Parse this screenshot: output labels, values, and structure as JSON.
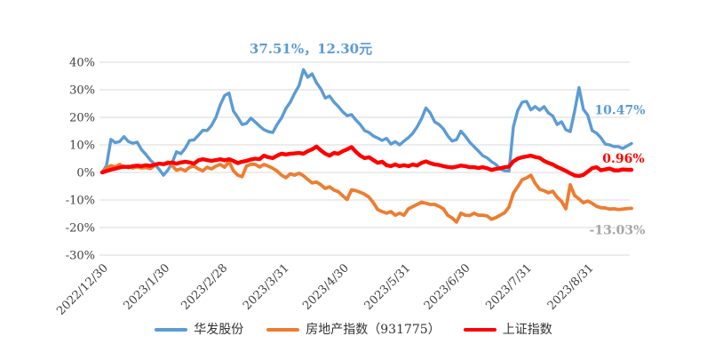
{
  "chart_data": {
    "type": "line",
    "title": "",
    "annotation": {
      "text": "37.51%，12.30元",
      "color": "#5B9BD5"
    },
    "grid": true,
    "legend_position": "bottom",
    "ylim": [
      -30,
      40
    ],
    "y_ticks": [
      {
        "value": 40,
        "label": "40%"
      },
      {
        "value": 30,
        "label": "30%"
      },
      {
        "value": 20,
        "label": "20%"
      },
      {
        "value": 10,
        "label": "10%"
      },
      {
        "value": 0,
        "label": "0%"
      },
      {
        "value": -10,
        "label": "-10%"
      },
      {
        "value": -20,
        "label": "-20%"
      },
      {
        "value": -30,
        "label": "-30%"
      }
    ],
    "x_tick_labels": [
      "2022/12/30",
      "2023/1/30",
      "2023/2/28",
      "2023/3/31",
      "2023/4/30",
      "2023/5/31",
      "2023/6/30",
      "2023/7/31",
      "2023/8/31"
    ],
    "x_tick_days": [
      0,
      31,
      60,
      91,
      121,
      152,
      182,
      213,
      244
    ],
    "total_days": 266,
    "colors": {
      "grid": "#D9D9D9",
      "axis_text": "#404040",
      "legend_text": "#333333"
    },
    "series": [
      {
        "name": "华发股份",
        "slug": "huafa-stock",
        "color": "#5B9BD5",
        "line_width": 3.4,
        "end_label": {
          "text": "10.47%",
          "color": "#5B9BD5"
        },
        "values": [
          0,
          2.5,
          12.0,
          10.8,
          11.2,
          13.0,
          11.2,
          10.6,
          11.0,
          8.3,
          6.5,
          4.5,
          3.0,
          1.2,
          -1.0,
          0.8,
          3.5,
          7.5,
          6.8,
          8.8,
          11.6,
          11.8,
          13.5,
          15.3,
          15.2,
          17.0,
          20.0,
          24.5,
          27.9,
          28.8,
          22.3,
          20.0,
          17.4,
          17.8,
          19.7,
          18.3,
          16.8,
          15.5,
          14.8,
          14.5,
          17.4,
          19.8,
          23.2,
          25.5,
          28.7,
          31.5,
          37.3,
          34.5,
          35.8,
          32.5,
          30.3,
          27.0,
          27.7,
          25.5,
          23.9,
          22.0,
          20.6,
          21.0,
          19.0,
          17.4,
          15.2,
          14.5,
          13.2,
          12.5,
          11.6,
          12.4,
          10.3,
          11.2,
          10.0,
          11.4,
          12.6,
          14.2,
          16.5,
          19.5,
          23.4,
          21.6,
          18.4,
          17.4,
          15.8,
          13.3,
          11.4,
          11.9,
          15.0,
          13.2,
          11.0,
          9.4,
          7.8,
          6.1,
          5.3,
          3.9,
          2.9,
          1.3,
          0.6,
          0.5,
          16.5,
          22.5,
          25.5,
          25.8,
          22.7,
          23.9,
          22.6,
          23.9,
          21.6,
          20.5,
          17.4,
          18.4,
          15.5,
          14.8,
          22.3,
          30.8,
          22.9,
          20.8,
          15.2,
          14.3,
          12.6,
          10.3,
          10.0,
          9.4,
          9.4,
          8.7,
          9.6,
          10.47
        ]
      },
      {
        "name": "房地产指数（931775）",
        "slug": "realestate-index",
        "color": "#ED7D31",
        "line_width": 3.8,
        "end_label": {
          "text": "-13.03%",
          "color": "#A6A6A6"
        },
        "values": [
          0,
          1.5,
          2.5,
          2.0,
          2.9,
          1.9,
          2.3,
          1.6,
          2.0,
          1.6,
          1.8,
          1.4,
          2.5,
          3.2,
          3.0,
          3.8,
          2.5,
          0.8,
          1.3,
          0.6,
          1.9,
          2.3,
          1.3,
          0.6,
          1.9,
          1.3,
          2.3,
          2.9,
          1.9,
          3.9,
          0.6,
          -1.0,
          -1.5,
          2.3,
          3.0,
          2.9,
          2.0,
          2.9,
          2.3,
          1.5,
          0.5,
          -1.0,
          -1.9,
          -0.5,
          -1.0,
          -0.3,
          -1.2,
          -2.5,
          -3.8,
          -3.5,
          -4.5,
          -5.8,
          -5.2,
          -6.4,
          -7.0,
          -8.5,
          -9.8,
          -6.3,
          -6.6,
          -7.2,
          -7.9,
          -9.0,
          -11.0,
          -13.5,
          -14.2,
          -14.8,
          -14.2,
          -15.5,
          -14.8,
          -15.5,
          -13.2,
          -12.4,
          -11.6,
          -10.8,
          -11.2,
          -11.6,
          -11.6,
          -12.3,
          -13.2,
          -15.5,
          -16.5,
          -18.0,
          -14.8,
          -15.5,
          -15.6,
          -14.8,
          -15.5,
          -15.5,
          -15.8,
          -17.0,
          -16.4,
          -15.5,
          -14.6,
          -12.5,
          -7.5,
          -5.2,
          -2.6,
          -2.0,
          -1.0,
          -4.0,
          -6.1,
          -6.6,
          -7.4,
          -6.8,
          -9.0,
          -10.5,
          -13.2,
          -4.5,
          -8.4,
          -9.6,
          -11.0,
          -10.4,
          -11.2,
          -12.3,
          -12.8,
          -12.9,
          -13.3,
          -13.2,
          -13.5,
          -13.3,
          -13.1,
          -13.03
        ]
      },
      {
        "name": "上证指数",
        "slug": "shanghai-index",
        "color": "#FF0000",
        "line_width": 4.4,
        "end_label": {
          "text": "0.96%",
          "color": "#FF0000"
        },
        "values": [
          0,
          0.5,
          1.0,
          1.4,
          1.8,
          2.1,
          1.9,
          2.3,
          2.5,
          2.3,
          2.6,
          2.4,
          2.8,
          3.2,
          3.0,
          3.4,
          3.6,
          3.2,
          3.6,
          3.9,
          3.6,
          3.2,
          4.4,
          4.8,
          4.5,
          4.2,
          4.5,
          4.8,
          4.4,
          4.8,
          4.2,
          3.4,
          3.9,
          4.2,
          4.7,
          5.0,
          4.8,
          6.1,
          5.5,
          5.2,
          6.1,
          6.8,
          6.5,
          6.8,
          6.9,
          7.1,
          6.8,
          7.7,
          8.4,
          9.4,
          8.0,
          6.8,
          6.1,
          7.1,
          6.8,
          7.7,
          8.4,
          9.2,
          7.5,
          6.1,
          5.2,
          5.5,
          4.5,
          3.5,
          3.9,
          2.6,
          2.3,
          2.9,
          2.3,
          2.6,
          2.3,
          2.9,
          2.5,
          3.5,
          4.0,
          3.4,
          2.9,
          2.7,
          2.3,
          2.0,
          1.8,
          2.1,
          2.5,
          2.3,
          1.9,
          1.9,
          1.6,
          1.9,
          1.5,
          0.9,
          1.3,
          1.5,
          1.9,
          2.1,
          4.0,
          5.0,
          5.5,
          5.8,
          6.1,
          5.6,
          5.3,
          4.2,
          3.5,
          2.9,
          2.0,
          1.3,
          0.5,
          -0.3,
          -1.1,
          -1.3,
          -0.9,
          0.3,
          1.5,
          1.9,
          0.8,
          1.1,
          1.4,
          0.8,
          0.7,
          1.1,
          1.0,
          0.96
        ]
      }
    ]
  }
}
